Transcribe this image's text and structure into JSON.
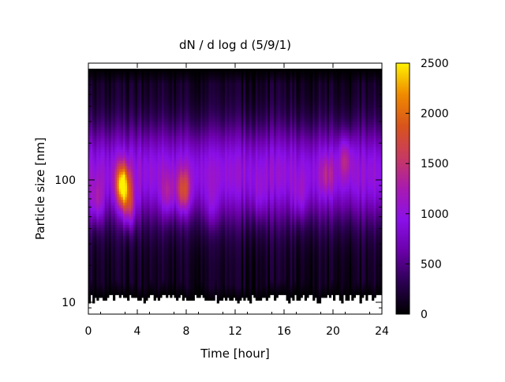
{
  "chart_data": {
    "type": "heatmap",
    "title": "dN / d log d (5/9/1)",
    "xlabel": "Time [hour]",
    "ylabel": "Particle size [nm]",
    "xlim": [
      0,
      24
    ],
    "ylim": [
      8,
      900
    ],
    "y_scale": "log",
    "x_ticks": [
      0,
      4,
      8,
      12,
      16,
      20,
      24
    ],
    "y_ticks": [
      10,
      100
    ],
    "grid": false,
    "colorbar": {
      "range": [
        0,
        2500
      ],
      "ticks": [
        0,
        500,
        1000,
        1500,
        2000,
        2500
      ],
      "colors": [
        "#000000",
        "#2a0050",
        "#6a00a8",
        "#8a10e8",
        "#a81ab0",
        "#c83a60",
        "#d8541c",
        "#f08a00",
        "#fff200"
      ]
    },
    "size_range_nm": [
      10,
      800
    ],
    "modes": [
      {
        "time_h": 0.7,
        "diameter_nm": 65,
        "value": 1200
      },
      {
        "time_h": 2.8,
        "diameter_nm": 90,
        "value": 2400
      },
      {
        "time_h": 3.3,
        "diameter_nm": 60,
        "value": 1500
      },
      {
        "time_h": 6.5,
        "diameter_nm": 75,
        "value": 1150
      },
      {
        "time_h": 7.8,
        "diameter_nm": 80,
        "value": 1600
      },
      {
        "time_h": 10.1,
        "diameter_nm": 60,
        "value": 950
      },
      {
        "time_h": 14.0,
        "diameter_nm": 70,
        "value": 900
      },
      {
        "time_h": 17.3,
        "diameter_nm": 70,
        "value": 1000
      },
      {
        "time_h": 19.5,
        "diameter_nm": 110,
        "value": 1100
      },
      {
        "time_h": 21.0,
        "diameter_nm": 150,
        "value": 1200
      }
    ]
  }
}
